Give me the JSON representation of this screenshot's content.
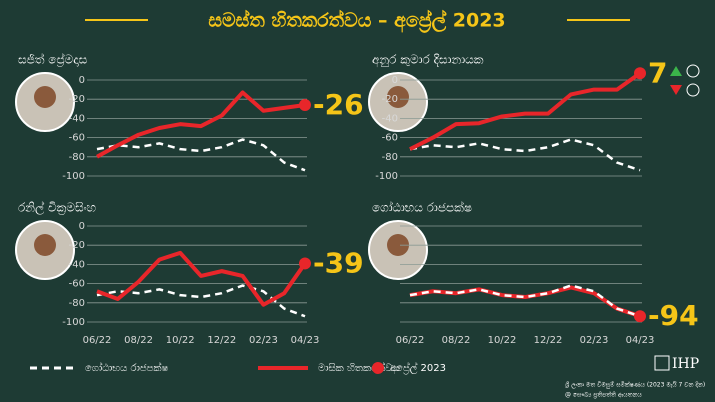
{
  "title": "සමස්ත හිතකරත්වය – අප්‍රේල් 2023",
  "legend": [
    "ගෝඨාභය රාජපක්ෂ",
    "මාසික හිතකරත්වය",
    "අප්‍රේල් 2023"
  ],
  "footer": [
    "ශ්‍රී ලංකා මත විමසුම් සමීක්ෂණය (2023 මැයි 7 වන දින)",
    "@ සෞඛ්‍ය ප්‍රතිපත්ති ආයතනය"
  ],
  "logo": "IHP",
  "chart_data": [
    {
      "type": "line",
      "title": "සජිත් ප්‍රේමදාස",
      "categories": [
        "06/22",
        null,
        "08/22",
        null,
        "10/22",
        null,
        "12/22",
        null,
        "02/23",
        null,
        "04/23"
      ],
      "ylim": [
        -100,
        0
      ],
      "yticks": [
        0,
        -20,
        -40,
        -60,
        -80,
        -100
      ],
      "ytick_labels": true,
      "xtick_labels": false,
      "grid": true,
      "series": [
        {
          "color": "#ffffff",
          "dashed": true,
          "values": [
            -72,
            -68,
            -70,
            -66,
            -72,
            -74,
            -70,
            -62,
            -68,
            -86,
            -94
          ]
        },
        {
          "color": "#e8262a",
          "dashed": false,
          "values": [
            -80,
            -68,
            -57,
            -50,
            -46,
            -48,
            -37,
            -13,
            -32,
            -29,
            -26
          ]
        }
      ]
    },
    {
      "type": "line",
      "title": "අනුර කුමාර දිසානායක",
      "categories": [
        "06/22",
        null,
        "08/22",
        null,
        "10/22",
        null,
        "12/22",
        null,
        "02/23",
        null,
        "04/23"
      ],
      "ylim": [
        -100,
        0
      ],
      "yticks": [
        0,
        -20,
        -40,
        -60,
        -80,
        -100
      ],
      "ytick_labels": true,
      "xtick_labels": false,
      "grid": true,
      "series": [
        {
          "color": "#ffffff",
          "dashed": true,
          "values": [
            -72,
            -68,
            -70,
            -66,
            -72,
            -74,
            -70,
            -62,
            -68,
            -86,
            -94
          ]
        },
        {
          "color": "#e8262a",
          "dashed": false,
          "values": [
            -72,
            -60,
            -46,
            -45,
            -38,
            -35,
            -35,
            -15,
            -10,
            -10,
            7
          ]
        }
      ]
    },
    {
      "type": "line",
      "title": "රනිල් වික්‍රමසිංහ",
      "categories": [
        "06/22",
        null,
        "08/22",
        null,
        "10/22",
        null,
        "12/22",
        null,
        "02/23",
        null,
        "04/23"
      ],
      "ylim": [
        -100,
        0
      ],
      "yticks": [
        0,
        -20,
        -40,
        -60,
        -80,
        -100
      ],
      "ytick_labels": true,
      "xtick_labels": true,
      "grid": true,
      "series": [
        {
          "color": "#ffffff",
          "dashed": true,
          "values": [
            -72,
            -68,
            -70,
            -66,
            -72,
            -74,
            -70,
            -62,
            -68,
            -86,
            -94
          ]
        },
        {
          "color": "#e8262a",
          "dashed": false,
          "values": [
            -68,
            -76,
            -58,
            -35,
            -28,
            -52,
            -47,
            -52,
            -82,
            -70,
            -39
          ]
        }
      ]
    },
    {
      "type": "line",
      "title": "ගෝඨාභය රාජපක්ෂ",
      "categories": [
        "06/22",
        null,
        "08/22",
        null,
        "10/22",
        null,
        "12/22",
        null,
        "02/23",
        null,
        "04/23"
      ],
      "ylim": [
        -100,
        0
      ],
      "yticks": [
        0,
        -20,
        -40,
        -60,
        -80,
        -100
      ],
      "ytick_labels": false,
      "xtick_labels": true,
      "grid": true,
      "series": [
        {
          "color": "#e8262a",
          "dashed": false,
          "values": [
            -72,
            -68,
            -70,
            -66,
            -72,
            -74,
            -70,
            -64,
            -70,
            -86,
            -94
          ]
        },
        {
          "color": "#ffffff",
          "dashed": true,
          "values": [
            -72,
            -68,
            -70,
            -66,
            -72,
            -74,
            -70,
            -62,
            -68,
            -86,
            -94
          ]
        }
      ]
    }
  ]
}
